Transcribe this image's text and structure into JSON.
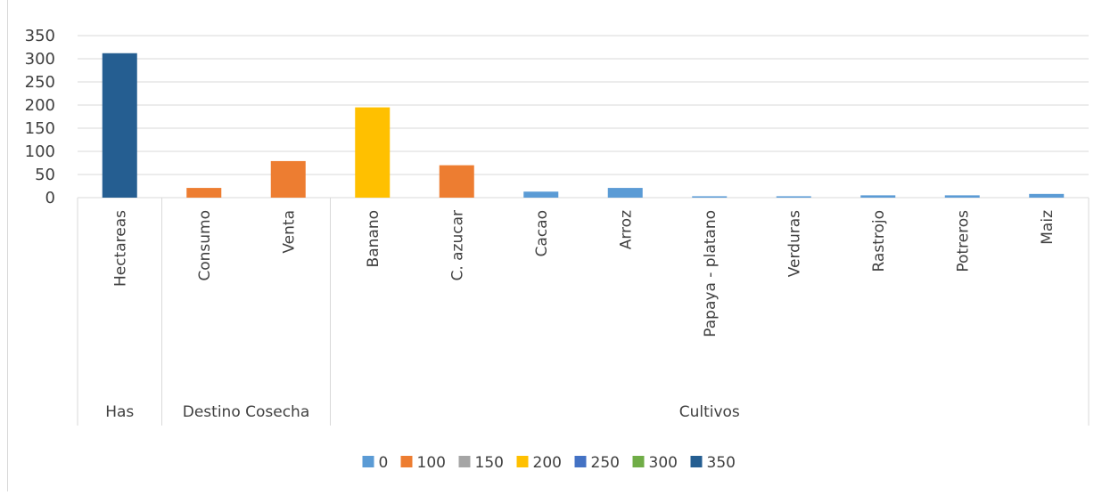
{
  "chart_data": {
    "type": "bar",
    "title": "",
    "xlabel": "",
    "ylabel": "",
    "ylim": [
      0,
      350
    ],
    "yticks": [
      0,
      50,
      100,
      150,
      200,
      250,
      300,
      350
    ],
    "grid": true,
    "legend_position": "bottom",
    "categories": [
      "Hectareas",
      "Consumo",
      "Venta",
      "Banano",
      "C. azucar",
      "Cacao",
      "Arroz",
      "Papaya - platano",
      "Verduras",
      "Rastrojo",
      "Potreros",
      "Maiz"
    ],
    "groups": [
      {
        "name": "Has",
        "categories": [
          "Hectareas"
        ]
      },
      {
        "name": "Destino Cosecha",
        "categories": [
          "Consumo",
          "Venta"
        ]
      },
      {
        "name": "Cultivos",
        "categories": [
          "Banano",
          "C. azucar",
          "Cacao",
          "Arroz",
          "Papaya - platano",
          "Verduras",
          "Rastrojo",
          "Potreros",
          "Maiz"
        ]
      }
    ],
    "series": [
      {
        "name": "0",
        "color": "#5b9bd5",
        "values": [
          0,
          0,
          0,
          0,
          0,
          13,
          21,
          3,
          3,
          5,
          5,
          8
        ]
      },
      {
        "name": "100",
        "color": "#ed7d31",
        "values": [
          0,
          21,
          79,
          0,
          70,
          0,
          0,
          0,
          0,
          0,
          0,
          0
        ]
      },
      {
        "name": "150",
        "color": "#a5a5a5",
        "values": [
          0,
          0,
          0,
          0,
          0,
          0,
          0,
          0,
          0,
          0,
          0,
          0
        ]
      },
      {
        "name": "200",
        "color": "#ffc000",
        "values": [
          0,
          0,
          0,
          195,
          0,
          0,
          0,
          0,
          0,
          0,
          0,
          0
        ]
      },
      {
        "name": "250",
        "color": "#4472c4",
        "values": [
          0,
          0,
          0,
          0,
          0,
          0,
          0,
          0,
          0,
          0,
          0,
          0
        ]
      },
      {
        "name": "300",
        "color": "#70ad47",
        "values": [
          0,
          0,
          0,
          0,
          0,
          0,
          0,
          0,
          0,
          0,
          0,
          0
        ]
      },
      {
        "name": "350",
        "color": "#255e91",
        "values": [
          312,
          0,
          0,
          0,
          0,
          0,
          0,
          0,
          0,
          0,
          0,
          0
        ]
      }
    ]
  }
}
